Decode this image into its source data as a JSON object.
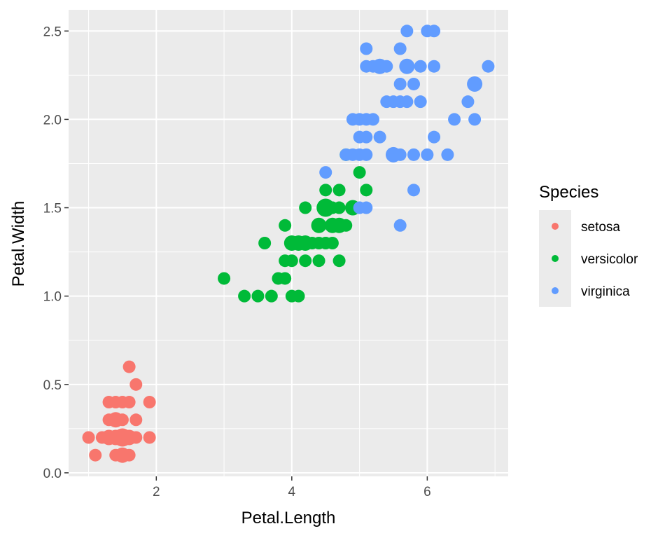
{
  "chart_data": {
    "type": "scatter",
    "xlabel": "Petal.Length",
    "ylabel": "Petal.Width",
    "xlim": [
      0.705,
      7.195
    ],
    "ylim": [
      -0.02,
      2.62
    ],
    "x_ticks": [
      2,
      4,
      6
    ],
    "y_ticks": [
      0.0,
      0.5,
      1.0,
      1.5,
      2.0,
      2.5
    ],
    "x_tick_labels": [
      "2",
      "4",
      "6"
    ],
    "y_tick_labels": [
      "0.0",
      "0.5",
      "1.0",
      "1.5",
      "2.0",
      "2.5"
    ],
    "grid": true,
    "panel_background": "#EBEBEB",
    "grid_color": "#FFFFFF",
    "legend": {
      "title": "Species",
      "placement": "right",
      "entries": [
        "setosa",
        "versicolor",
        "virginica"
      ]
    },
    "series": [
      {
        "name": "setosa",
        "color": "#F8766D",
        "points": [
          [
            1.0,
            0.2
          ],
          [
            1.1,
            0.1
          ],
          [
            1.2,
            0.2
          ],
          [
            1.3,
            0.2
          ],
          [
            1.3,
            0.3
          ],
          [
            1.3,
            0.4
          ],
          [
            1.4,
            0.1
          ],
          [
            1.4,
            0.2
          ],
          [
            1.4,
            0.3
          ],
          [
            1.4,
            0.4
          ],
          [
            1.5,
            0.1
          ],
          [
            1.5,
            0.2
          ],
          [
            1.5,
            0.3
          ],
          [
            1.5,
            0.4
          ],
          [
            1.6,
            0.2
          ],
          [
            1.6,
            0.4
          ],
          [
            1.6,
            0.6
          ],
          [
            1.7,
            0.2
          ],
          [
            1.7,
            0.3
          ],
          [
            1.7,
            0.5
          ],
          [
            1.9,
            0.2
          ],
          [
            1.9,
            0.4
          ],
          [
            1.6,
            0.1
          ],
          [
            1.4,
            0.3
          ],
          [
            1.5,
            0.2
          ],
          [
            1.3,
            0.2
          ],
          [
            1.4,
            0.2
          ],
          [
            1.5,
            0.2
          ],
          [
            1.6,
            0.2
          ],
          [
            1.5,
            0.1
          ]
        ]
      },
      {
        "name": "versicolor",
        "color": "#00BA38",
        "points": [
          [
            3.0,
            1.1
          ],
          [
            3.3,
            1.0
          ],
          [
            3.5,
            1.0
          ],
          [
            3.6,
            1.3
          ],
          [
            3.7,
            1.0
          ],
          [
            3.8,
            1.1
          ],
          [
            3.9,
            1.1
          ],
          [
            3.9,
            1.2
          ],
          [
            3.9,
            1.4
          ],
          [
            4.0,
            1.0
          ],
          [
            4.0,
            1.2
          ],
          [
            4.0,
            1.3
          ],
          [
            4.1,
            1.0
          ],
          [
            4.1,
            1.3
          ],
          [
            4.2,
            1.2
          ],
          [
            4.2,
            1.3
          ],
          [
            4.2,
            1.5
          ],
          [
            4.3,
            1.3
          ],
          [
            4.4,
            1.2
          ],
          [
            4.4,
            1.3
          ],
          [
            4.4,
            1.4
          ],
          [
            4.5,
            1.3
          ],
          [
            4.5,
            1.5
          ],
          [
            4.5,
            1.6
          ],
          [
            4.6,
            1.3
          ],
          [
            4.6,
            1.4
          ],
          [
            4.6,
            1.5
          ],
          [
            4.7,
            1.2
          ],
          [
            4.7,
            1.4
          ],
          [
            4.7,
            1.5
          ],
          [
            4.7,
            1.6
          ],
          [
            4.8,
            1.4
          ],
          [
            4.8,
            1.8
          ],
          [
            4.9,
            1.5
          ],
          [
            5.0,
            1.7
          ],
          [
            5.1,
            1.6
          ],
          [
            4.4,
            1.4
          ],
          [
            4.5,
            1.5
          ],
          [
            4.6,
            1.4
          ],
          [
            4.7,
            1.4
          ],
          [
            4.0,
            1.3
          ],
          [
            4.5,
            1.5
          ],
          [
            4.9,
            1.5
          ],
          [
            4.2,
            1.3
          ],
          [
            4.1,
            1.3
          ]
        ]
      },
      {
        "name": "virginica",
        "color": "#619CFF",
        "points": [
          [
            4.5,
            1.7
          ],
          [
            4.8,
            1.8
          ],
          [
            4.9,
            1.8
          ],
          [
            4.9,
            2.0
          ],
          [
            5.0,
            1.5
          ],
          [
            5.0,
            1.8
          ],
          [
            5.0,
            1.9
          ],
          [
            5.0,
            2.0
          ],
          [
            5.1,
            1.5
          ],
          [
            5.1,
            1.8
          ],
          [
            5.1,
            1.9
          ],
          [
            5.1,
            2.0
          ],
          [
            5.1,
            2.3
          ],
          [
            5.1,
            2.4
          ],
          [
            5.2,
            2.0
          ],
          [
            5.2,
            2.3
          ],
          [
            5.3,
            1.9
          ],
          [
            5.3,
            2.3
          ],
          [
            5.4,
            2.1
          ],
          [
            5.4,
            2.3
          ],
          [
            5.5,
            1.8
          ],
          [
            5.5,
            2.1
          ],
          [
            5.6,
            1.4
          ],
          [
            5.6,
            1.8
          ],
          [
            5.6,
            2.1
          ],
          [
            5.6,
            2.2
          ],
          [
            5.6,
            2.4
          ],
          [
            5.7,
            2.1
          ],
          [
            5.7,
            2.3
          ],
          [
            5.7,
            2.5
          ],
          [
            5.8,
            1.6
          ],
          [
            5.8,
            1.8
          ],
          [
            5.8,
            2.2
          ],
          [
            5.9,
            2.1
          ],
          [
            5.9,
            2.3
          ],
          [
            6.0,
            1.8
          ],
          [
            6.0,
            2.5
          ],
          [
            6.1,
            1.9
          ],
          [
            6.1,
            2.3
          ],
          [
            6.1,
            2.5
          ],
          [
            6.3,
            1.8
          ],
          [
            6.4,
            2.0
          ],
          [
            6.6,
            2.1
          ],
          [
            6.7,
            2.0
          ],
          [
            6.7,
            2.2
          ],
          [
            6.9,
            2.3
          ],
          [
            5.3,
            2.3
          ],
          [
            5.7,
            2.3
          ],
          [
            5.5,
            1.8
          ],
          [
            6.7,
            2.2
          ]
        ]
      }
    ]
  }
}
